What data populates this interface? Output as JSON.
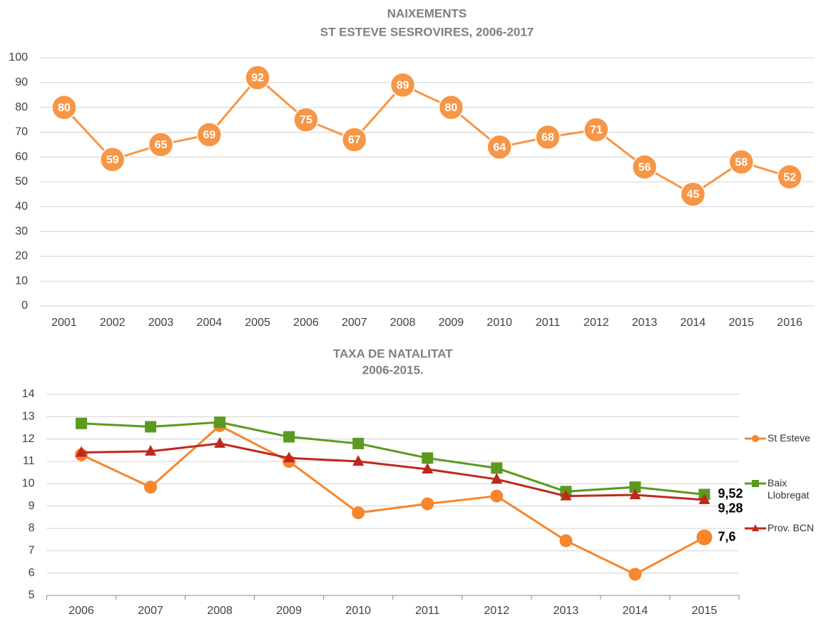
{
  "chart_data": [
    {
      "type": "line",
      "title": "NAIXEMENTS",
      "subtitle": "ST ESTEVE SESROVIRES, 2006-2017",
      "categories": [
        "2001",
        "2002",
        "2003",
        "2004",
        "2005",
        "2006",
        "2007",
        "2008",
        "2009",
        "2010",
        "2011",
        "2012",
        "2013",
        "2014",
        "2015",
        "2016"
      ],
      "series": [
        {
          "name": null,
          "color": "#f79646",
          "marker": "circle",
          "data_labels": true,
          "values": [
            80,
            59,
            65,
            69,
            92,
            75,
            67,
            89,
            80,
            64,
            68,
            71,
            56,
            45,
            58,
            52
          ]
        }
      ],
      "ylim": [
        0,
        100
      ],
      "yticks": [
        0,
        10,
        20,
        30,
        40,
        50,
        60,
        70,
        80,
        90,
        100
      ],
      "grid": true,
      "legend": null
    },
    {
      "type": "line",
      "title": "TAXA DE NATALITAT",
      "subtitle": "2006-2015.",
      "categories": [
        "2006",
        "2007",
        "2008",
        "2009",
        "2010",
        "2011",
        "2012",
        "2013",
        "2014",
        "2015"
      ],
      "series": [
        {
          "name": "St Esteve",
          "color": "#f7862c",
          "marker": "circle",
          "values": [
            11.3,
            9.85,
            12.6,
            11.0,
            8.7,
            9.1,
            9.45,
            7.45,
            5.95,
            7.6
          ],
          "value_labels": [
            null,
            null,
            null,
            null,
            null,
            null,
            null,
            null,
            null,
            "7,6"
          ]
        },
        {
          "name": "Baix Llobregat",
          "color": "#5b9a1f",
          "marker": "square",
          "values": [
            12.7,
            12.55,
            12.75,
            12.1,
            11.8,
            11.15,
            10.7,
            9.65,
            9.85,
            9.52
          ],
          "value_labels": [
            null,
            null,
            null,
            null,
            null,
            null,
            null,
            null,
            null,
            "9,52"
          ]
        },
        {
          "name": "Prov. BCN",
          "color": "#c0281e",
          "marker": "triangle",
          "values": [
            11.4,
            11.45,
            11.8,
            11.15,
            11.0,
            10.65,
            10.2,
            9.45,
            9.5,
            9.28
          ],
          "value_labels": [
            null,
            null,
            null,
            null,
            null,
            null,
            null,
            null,
            null,
            "9,28"
          ]
        }
      ],
      "ylim": [
        5,
        14
      ],
      "yticks": [
        5,
        6,
        7,
        8,
        9,
        10,
        11,
        12,
        13,
        14
      ],
      "grid": true,
      "legend": "right"
    }
  ]
}
